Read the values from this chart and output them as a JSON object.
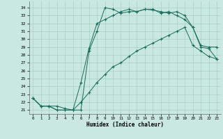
{
  "xlabel": "Humidex (Indice chaleur)",
  "xlim": [
    -0.5,
    23.5
  ],
  "ylim": [
    20.5,
    34.8
  ],
  "yticks": [
    21,
    22,
    23,
    24,
    25,
    26,
    27,
    28,
    29,
    30,
    31,
    32,
    33,
    34
  ],
  "xticks": [
    0,
    1,
    2,
    3,
    4,
    5,
    6,
    7,
    8,
    9,
    10,
    11,
    12,
    13,
    14,
    15,
    16,
    17,
    18,
    19,
    20,
    21,
    22,
    23
  ],
  "bg_color": "#c8e8e0",
  "grid_color": "#a0c8c0",
  "line_color": "#1a6b5a",
  "line1_x": [
    0,
    1,
    2,
    3,
    4,
    5,
    6,
    7,
    8,
    9,
    10,
    11,
    12,
    13,
    14,
    15,
    16,
    17,
    18,
    19,
    20,
    21,
    22,
    23
  ],
  "line1_y": [
    22.5,
    21.5,
    21.5,
    21.0,
    21.0,
    21.0,
    21.0,
    28.5,
    31.0,
    34.0,
    33.8,
    33.3,
    33.5,
    33.5,
    33.8,
    33.7,
    33.5,
    33.3,
    33.5,
    33.0,
    31.5,
    29.2,
    29.0,
    29.0
  ],
  "line2_x": [
    0,
    1,
    2,
    3,
    4,
    5,
    6,
    7,
    8,
    9,
    10,
    11,
    12,
    13,
    14,
    15,
    16,
    17,
    18,
    19,
    20,
    21,
    22,
    23
  ],
  "line2_y": [
    22.5,
    21.5,
    21.5,
    21.5,
    21.2,
    21.0,
    24.5,
    28.8,
    32.0,
    32.5,
    33.0,
    33.5,
    33.8,
    33.5,
    33.8,
    33.8,
    33.3,
    33.5,
    33.0,
    32.5,
    31.5,
    29.0,
    28.8,
    27.5
  ],
  "line3_x": [
    0,
    1,
    2,
    3,
    4,
    5,
    6,
    7,
    8,
    9,
    10,
    11,
    12,
    13,
    14,
    15,
    16,
    17,
    18,
    19,
    20,
    21,
    22,
    23
  ],
  "line3_y": [
    22.5,
    21.5,
    21.5,
    21.0,
    21.0,
    21.0,
    22.0,
    23.2,
    24.5,
    25.5,
    26.5,
    27.0,
    27.8,
    28.5,
    29.0,
    29.5,
    30.0,
    30.5,
    31.0,
    31.5,
    29.2,
    28.5,
    27.8,
    27.5
  ]
}
